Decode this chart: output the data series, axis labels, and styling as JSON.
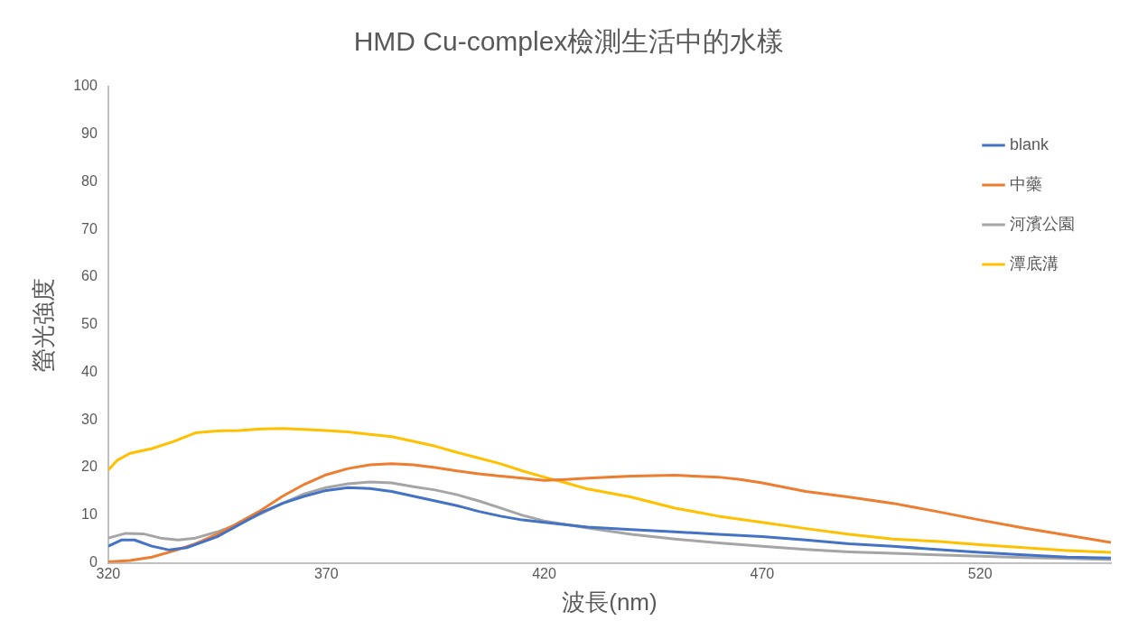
{
  "chart_data": {
    "type": "line",
    "title": "HMD Cu-complex檢測生活中的水樣",
    "xlabel": "波長(nm)",
    "ylabel": "螢光強度",
    "xlim": [
      320,
      550
    ],
    "xticks": [
      320,
      370,
      420,
      470,
      520
    ],
    "ylim": [
      0,
      100
    ],
    "yticks": [
      0,
      10,
      20,
      30,
      40,
      50,
      60,
      70,
      80,
      90,
      100
    ],
    "grid": false,
    "legend": "top right",
    "marker": "none",
    "line_style": "solid",
    "series": [
      {
        "name": "blank",
        "color": "#4472c4",
        "x": [
          320,
          323,
          326,
          330,
          334,
          338,
          345,
          350,
          355,
          360,
          365,
          370,
          375,
          380,
          385,
          390,
          395,
          400,
          405,
          410,
          415,
          420,
          430,
          440,
          450,
          460,
          470,
          480,
          490,
          500,
          510,
          520,
          530,
          540,
          550
        ],
        "values": [
          3.5,
          4.8,
          4.8,
          3.5,
          2.7,
          3.2,
          5.5,
          8,
          10.5,
          12.5,
          14,
          15.2,
          15.8,
          15.6,
          15,
          14,
          13,
          12,
          10.8,
          9.8,
          9,
          8.5,
          7.5,
          7,
          6.5,
          6,
          5.5,
          4.8,
          4,
          3.5,
          2.8,
          2.2,
          1.7,
          1.2,
          1
        ]
      },
      {
        "name": "中藥",
        "color": "#ed7d31",
        "x": [
          320,
          325,
          330,
          335,
          340,
          345,
          350,
          355,
          360,
          365,
          370,
          375,
          380,
          385,
          390,
          395,
          400,
          405,
          410,
          415,
          420,
          425,
          430,
          440,
          450,
          460,
          465,
          470,
          480,
          490,
          500,
          510,
          520,
          530,
          540,
          550
        ],
        "values": [
          0.2,
          0.5,
          1.2,
          2.5,
          4,
          6,
          8.5,
          11,
          14,
          16.5,
          18.5,
          19.8,
          20.6,
          20.8,
          20.6,
          20,
          19.3,
          18.7,
          18.2,
          17.8,
          17.3,
          17.5,
          17.8,
          18.2,
          18.4,
          18,
          17.5,
          16.8,
          15,
          13.8,
          12.5,
          10.8,
          9,
          7.3,
          5.8,
          4.3
        ]
      },
      {
        "name": "河濱公園",
        "color": "#a5a5a5",
        "x": [
          320,
          324,
          328,
          332,
          336,
          340,
          345,
          350,
          355,
          360,
          365,
          370,
          375,
          380,
          385,
          390,
          395,
          400,
          405,
          410,
          415,
          420,
          430,
          440,
          450,
          460,
          470,
          480,
          490,
          500,
          510,
          520,
          530,
          540,
          550
        ],
        "values": [
          5.2,
          6.2,
          6.1,
          5.2,
          4.8,
          5.2,
          6.5,
          8.2,
          10.3,
          12.5,
          14.5,
          15.8,
          16.6,
          17,
          16.8,
          16,
          15.3,
          14.3,
          13,
          11.5,
          10,
          8.8,
          7.3,
          6,
          5,
          4.2,
          3.5,
          2.8,
          2.3,
          2,
          1.7,
          1.4,
          1.1,
          0.9,
          0.7
        ]
      },
      {
        "name": "潭底溝",
        "color": "#ffc000",
        "x": [
          320,
          322,
          325,
          330,
          335,
          340,
          345,
          350,
          355,
          360,
          365,
          370,
          375,
          380,
          385,
          390,
          395,
          400,
          405,
          410,
          415,
          420,
          425,
          430,
          440,
          450,
          460,
          470,
          480,
          490,
          500,
          510,
          520,
          530,
          540,
          550
        ],
        "values": [
          19.5,
          21.5,
          23,
          24,
          25.5,
          27.3,
          27.7,
          27.8,
          28.1,
          28.2,
          28,
          27.8,
          27.5,
          27,
          26.5,
          25.5,
          24.5,
          23.2,
          22,
          20.8,
          19.3,
          18,
          16.8,
          15.5,
          13.8,
          11.5,
          9.8,
          8.5,
          7.2,
          6,
          5,
          4.5,
          3.8,
          3.2,
          2.6,
          2.2
        ]
      }
    ]
  }
}
